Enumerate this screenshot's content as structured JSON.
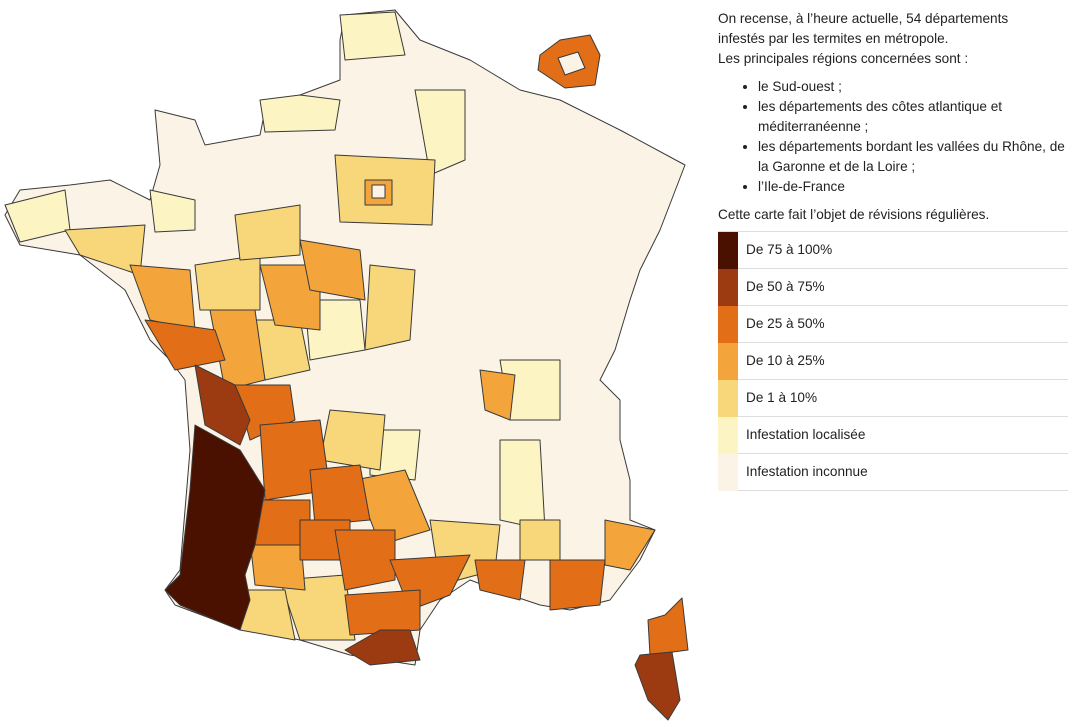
{
  "intro": "On recense, à l’heure actuelle, 54 départements infestés par les termites en métropole.",
  "lead": "Les principales régions concernées sont :",
  "regions": [
    "le Sud-ouest ;",
    "les départements des côtes atlantique et méditerranéenne ;",
    "les départements bordant les vallées du Rhône, de la Garonne et de la Loire ;",
    "l’Ile-de-France"
  ],
  "note": "Cette carte fait l’objet de révisions régulières.",
  "legend": [
    {
      "label": "De 75 à 100%",
      "color": "#4b1100"
    },
    {
      "label": "De 50 à 75%",
      "color": "#9c3b12"
    },
    {
      "label": "De 25 à 50%",
      "color": "#e26f17"
    },
    {
      "label": "De 10 à 25%",
      "color": "#f3a53b"
    },
    {
      "label": "De 1 à 10%",
      "color": "#f8d67a"
    },
    {
      "label": "Infestation localisée",
      "color": "#fcf4c2"
    },
    {
      "label": "Infestation inconnue",
      "color": "#fbf3e5"
    }
  ]
}
